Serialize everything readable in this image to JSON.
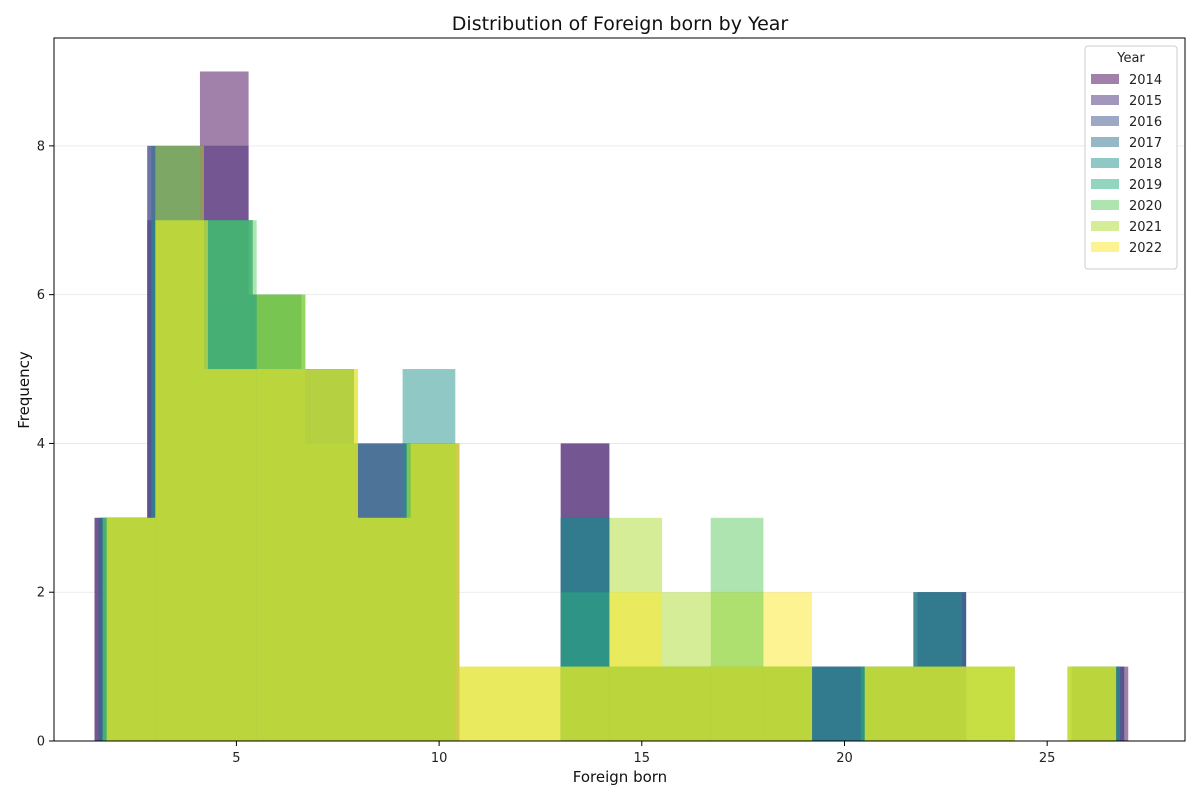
{
  "chart_data": {
    "type": "bar",
    "title": "Distribution of Foreign born by Year",
    "xlabel": "Foreign born",
    "ylabel": "Frequency",
    "xlim": [
      0.5,
      28.4
    ],
    "ylim": [
      0,
      9.45
    ],
    "xticks": [
      5,
      10,
      15,
      20,
      25
    ],
    "yticks": [
      0,
      2,
      4,
      6,
      8
    ],
    "grid_y": true,
    "legend": {
      "title": "Year",
      "position": "top-right"
    },
    "bar_opacity": 0.5,
    "series": [
      {
        "name": "2014",
        "color": "#440154",
        "bins": [
          [
            1.5,
            2.8,
            3
          ],
          [
            2.8,
            4.1,
            7
          ],
          [
            4.1,
            5.3,
            9
          ],
          [
            5.3,
            6.6,
            6
          ],
          [
            6.6,
            7.9,
            5
          ],
          [
            7.9,
            9.2,
            3
          ],
          [
            9.2,
            10.5,
            4
          ],
          [
            13.0,
            14.2,
            4
          ],
          [
            14.2,
            15.5,
            1
          ],
          [
            15.5,
            16.7,
            1
          ],
          [
            16.7,
            18.0,
            1
          ],
          [
            18.0,
            19.2,
            1
          ],
          [
            19.2,
            20.5,
            1
          ],
          [
            20.5,
            21.8,
            1
          ],
          [
            21.8,
            23.0,
            2
          ],
          [
            25.6,
            27.0,
            1
          ]
        ]
      },
      {
        "name": "2015",
        "color": "#472d7b",
        "bins": [
          [
            1.5,
            2.8,
            3
          ],
          [
            2.8,
            4.0,
            8
          ],
          [
            4.0,
            5.3,
            8
          ],
          [
            5.3,
            6.6,
            6
          ],
          [
            6.6,
            7.9,
            5
          ],
          [
            7.9,
            9.2,
            4
          ],
          [
            9.2,
            10.4,
            4
          ],
          [
            13.0,
            14.2,
            4
          ],
          [
            14.2,
            15.5,
            1
          ],
          [
            15.5,
            16.7,
            1
          ],
          [
            16.7,
            17.9,
            1
          ],
          [
            17.9,
            19.2,
            1
          ],
          [
            19.2,
            20.4,
            1
          ],
          [
            20.4,
            21.7,
            1
          ],
          [
            21.7,
            23.0,
            2
          ],
          [
            25.6,
            26.9,
            1
          ]
        ]
      },
      {
        "name": "2016",
        "color": "#3b528b",
        "bins": [
          [
            1.6,
            2.8,
            3
          ],
          [
            2.8,
            4.1,
            8
          ],
          [
            4.1,
            5.4,
            6
          ],
          [
            5.4,
            6.6,
            6
          ],
          [
            6.6,
            7.9,
            5
          ],
          [
            7.9,
            9.2,
            4
          ],
          [
            9.2,
            10.4,
            4
          ],
          [
            13.0,
            14.2,
            3
          ],
          [
            14.2,
            15.5,
            1
          ],
          [
            15.5,
            16.7,
            1
          ],
          [
            16.7,
            18.0,
            1
          ],
          [
            18.0,
            19.2,
            1
          ],
          [
            19.2,
            20.5,
            1
          ],
          [
            20.5,
            21.8,
            1
          ],
          [
            21.8,
            23.0,
            2
          ],
          [
            25.6,
            26.9,
            1
          ]
        ]
      },
      {
        "name": "2017",
        "color": "#2c728e",
        "bins": [
          [
            1.6,
            2.9,
            3
          ],
          [
            2.9,
            4.1,
            8
          ],
          [
            4.1,
            5.4,
            7
          ],
          [
            5.4,
            6.6,
            6
          ],
          [
            6.6,
            7.9,
            5
          ],
          [
            7.9,
            9.2,
            4
          ],
          [
            9.2,
            10.4,
            4
          ],
          [
            13.0,
            14.2,
            3
          ],
          [
            14.2,
            15.5,
            1
          ],
          [
            15.5,
            16.7,
            1
          ],
          [
            16.7,
            17.9,
            1
          ],
          [
            17.9,
            19.2,
            1
          ],
          [
            19.2,
            20.4,
            1
          ],
          [
            20.4,
            21.7,
            1
          ],
          [
            21.7,
            23.0,
            2
          ],
          [
            25.6,
            26.8,
            1
          ]
        ]
      },
      {
        "name": "2018",
        "color": "#21918c",
        "bins": [
          [
            1.7,
            2.9,
            3
          ],
          [
            2.9,
            4.1,
            7
          ],
          [
            4.1,
            5.4,
            7
          ],
          [
            5.4,
            6.6,
            6
          ],
          [
            6.6,
            7.9,
            5
          ],
          [
            7.9,
            9.1,
            3
          ],
          [
            9.1,
            10.4,
            5
          ],
          [
            13.0,
            14.2,
            3
          ],
          [
            14.2,
            15.5,
            1
          ],
          [
            15.5,
            16.7,
            1
          ],
          [
            16.7,
            17.9,
            1
          ],
          [
            17.9,
            19.2,
            1
          ],
          [
            19.2,
            20.4,
            1
          ],
          [
            20.4,
            21.7,
            1
          ],
          [
            21.7,
            22.9,
            2
          ],
          [
            25.6,
            26.8,
            1
          ]
        ]
      },
      {
        "name": "2019",
        "color": "#28ae80",
        "bins": [
          [
            1.7,
            3.0,
            3
          ],
          [
            3.0,
            4.2,
            7
          ],
          [
            4.2,
            5.4,
            7
          ],
          [
            5.4,
            6.7,
            6
          ],
          [
            6.7,
            7.9,
            5
          ],
          [
            7.9,
            9.2,
            3
          ],
          [
            9.2,
            10.4,
            4
          ],
          [
            13.0,
            14.2,
            2
          ],
          [
            14.2,
            15.5,
            1
          ],
          [
            15.5,
            16.7,
            1
          ],
          [
            16.7,
            17.9,
            1
          ],
          [
            17.9,
            19.2,
            1
          ],
          [
            19.2,
            20.4,
            0
          ],
          [
            20.4,
            21.7,
            1
          ],
          [
            21.7,
            22.9,
            1
          ],
          [
            22.9,
            24.2,
            1
          ],
          [
            25.5,
            26.7,
            1
          ]
        ]
      },
      {
        "name": "2020",
        "color": "#5ec962",
        "bins": [
          [
            1.7,
            3.0,
            3
          ],
          [
            3.0,
            4.2,
            7
          ],
          [
            4.2,
            5.5,
            7
          ],
          [
            5.5,
            6.7,
            6
          ],
          [
            6.7,
            8.0,
            4
          ],
          [
            8.0,
            9.2,
            3
          ],
          [
            9.2,
            10.4,
            4
          ],
          [
            13.0,
            14.2,
            1
          ],
          [
            14.2,
            15.5,
            1
          ],
          [
            15.5,
            16.7,
            1
          ],
          [
            16.7,
            18.0,
            3
          ],
          [
            18.0,
            19.2,
            1
          ],
          [
            20.5,
            21.7,
            1
          ],
          [
            21.7,
            23.0,
            1
          ],
          [
            23.0,
            24.2,
            1
          ],
          [
            25.5,
            26.7,
            1
          ]
        ]
      },
      {
        "name": "2021",
        "color": "#addc30",
        "bins": [
          [
            1.8,
            3.0,
            3
          ],
          [
            3.0,
            4.2,
            8
          ],
          [
            4.2,
            5.5,
            5
          ],
          [
            5.5,
            6.7,
            6
          ],
          [
            6.7,
            8.0,
            5
          ],
          [
            8.0,
            9.2,
            3
          ],
          [
            9.2,
            10.5,
            4
          ],
          [
            10.5,
            11.7,
            1
          ],
          [
            11.7,
            13.0,
            1
          ],
          [
            13.0,
            14.2,
            1
          ],
          [
            14.2,
            15.5,
            3
          ],
          [
            15.5,
            16.7,
            2
          ],
          [
            16.7,
            18.0,
            2
          ],
          [
            18.0,
            19.2,
            1
          ],
          [
            20.5,
            21.7,
            1
          ],
          [
            21.7,
            23.0,
            1
          ],
          [
            23.0,
            24.2,
            1
          ],
          [
            25.5,
            26.7,
            1
          ]
        ]
      },
      {
        "name": "2022",
        "color": "#fde725",
        "bins": [
          [
            1.8,
            3.0,
            3
          ],
          [
            3.0,
            4.3,
            7
          ],
          [
            4.3,
            5.5,
            5
          ],
          [
            5.5,
            6.8,
            5
          ],
          [
            6.8,
            8.0,
            5
          ],
          [
            8.0,
            9.3,
            3
          ],
          [
            9.3,
            10.5,
            4
          ],
          [
            10.5,
            11.7,
            1
          ],
          [
            11.7,
            13.0,
            1
          ],
          [
            13.0,
            14.2,
            1
          ],
          [
            14.2,
            15.5,
            2
          ],
          [
            15.5,
            16.7,
            1
          ],
          [
            16.7,
            18.0,
            1
          ],
          [
            18.0,
            19.2,
            2
          ],
          [
            20.5,
            21.7,
            1
          ],
          [
            21.7,
            23.0,
            1
          ],
          [
            23.0,
            24.2,
            1
          ],
          [
            25.5,
            26.7,
            1
          ]
        ]
      }
    ]
  }
}
